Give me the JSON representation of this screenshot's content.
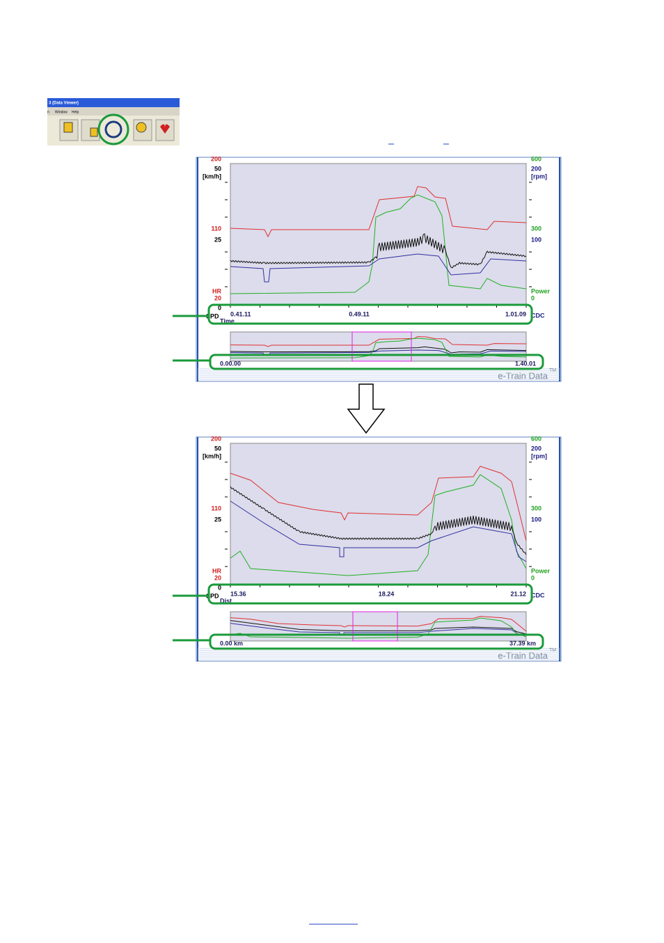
{
  "toolbar": {
    "title": "3 (Data Viewer)",
    "menu": [
      "n",
      "Window",
      "Help"
    ]
  },
  "charts": [
    {
      "left_axis": [
        "200",
        "50",
        "[km/h]",
        "110",
        "25",
        "HR",
        "20",
        "0",
        "SPD"
      ],
      "right_axis": [
        "600",
        "200",
        "[rpm]",
        "300",
        "100",
        "Power",
        "0",
        "CDC"
      ],
      "x_label": "Time",
      "x_ticks": [
        "0.41.11",
        "0.49.11",
        "1.01.09"
      ],
      "overview_start": "0.00.00",
      "overview_end": "1.40.01",
      "brand": "e-Train Data",
      "trademark": "TM"
    },
    {
      "left_axis": [
        "200",
        "50",
        "[km/h]",
        "110",
        "25",
        "HR",
        "20",
        "0",
        "SPD"
      ],
      "right_axis": [
        "600",
        "200",
        "[rpm]",
        "300",
        "100",
        "Power",
        "0",
        "CDC"
      ],
      "x_label": "Dist",
      "x_ticks": [
        "15.36",
        "18.24",
        "21.12"
      ],
      "overview_start": "0.00 km",
      "overview_end": "37.39 km",
      "brand": "e-Train Data",
      "trademark": "TM"
    }
  ]
}
